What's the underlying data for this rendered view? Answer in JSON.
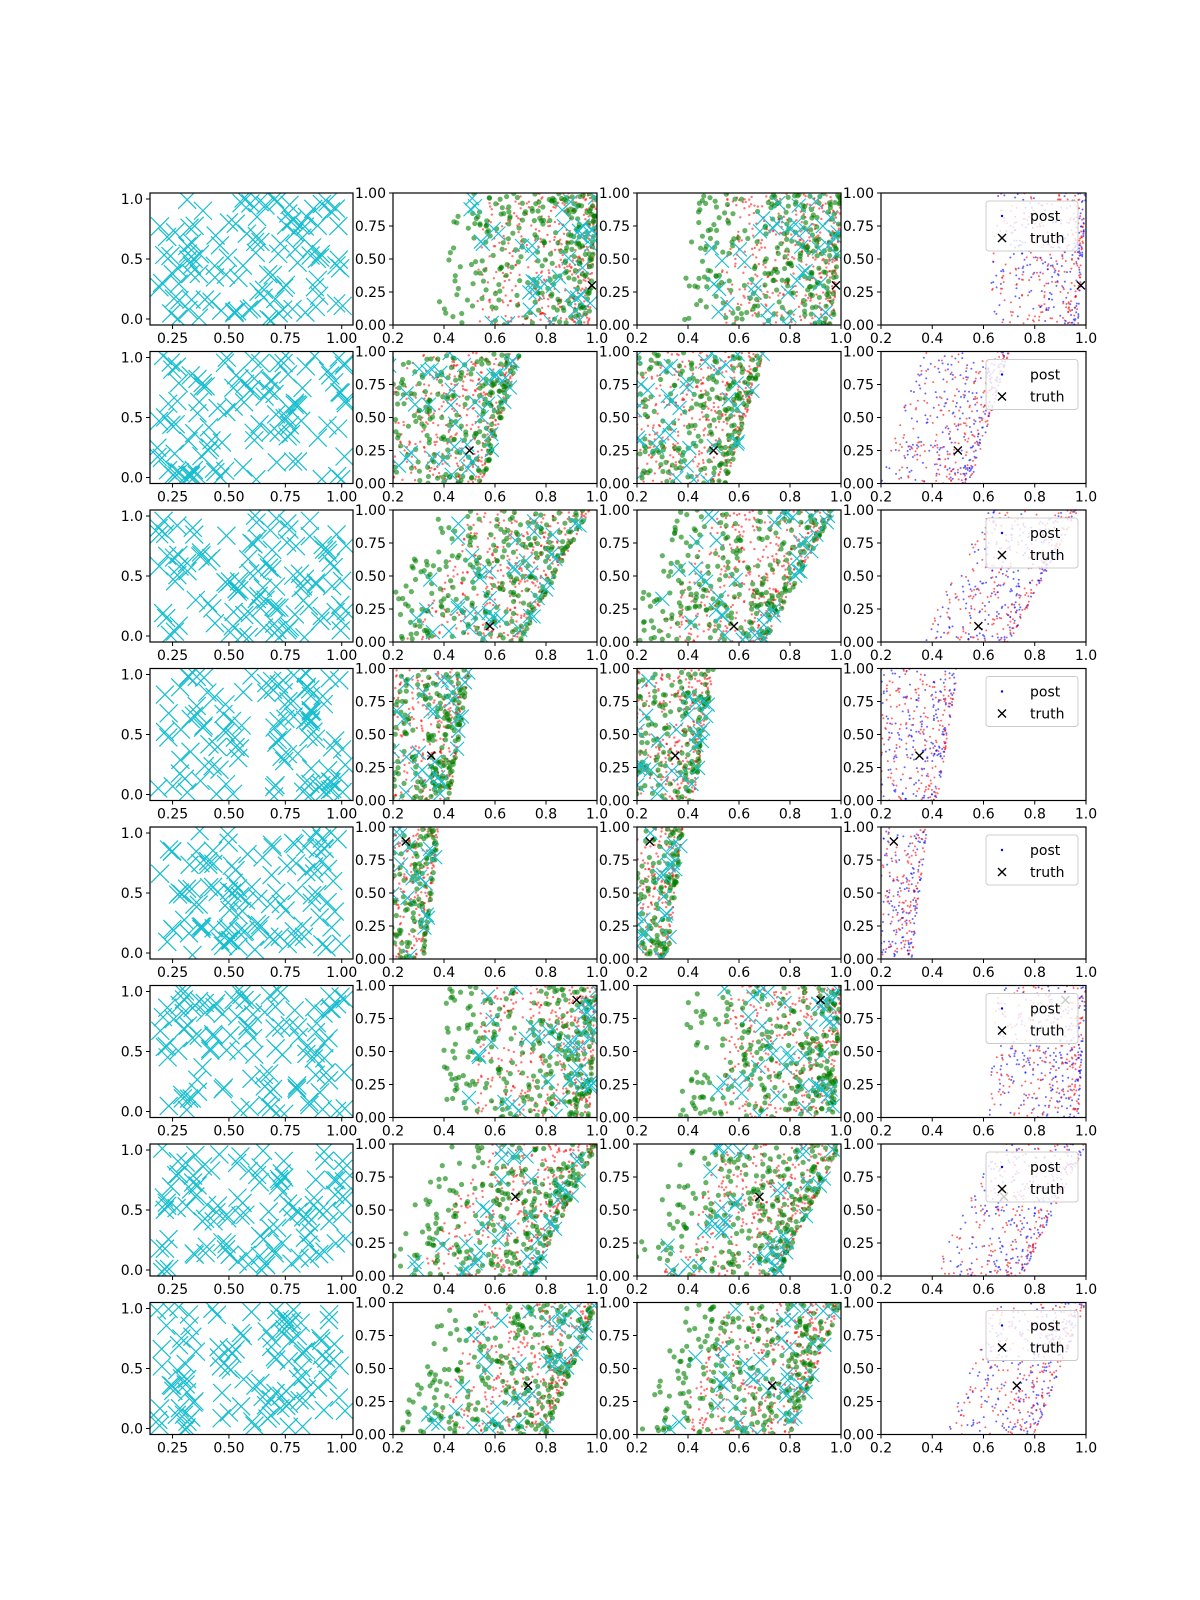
{
  "figure": {
    "colors": {
      "design": "#17becf",
      "post": "#0000ff",
      "post_alt": "#ff0000",
      "prior": "#008000",
      "truth": "#000000"
    },
    "legend_entries": [
      "post",
      "truth"
    ],
    "design_x_ticks": [
      "0.25",
      "0.50",
      "0.75",
      "1.00"
    ],
    "design_y_ticks": [
      "0.0",
      "0.5",
      "1.0"
    ],
    "post_x_ticks": [
      "0.2",
      "0.4",
      "0.6",
      "0.8",
      "1.0"
    ],
    "post_y_ticks": [
      "0.00",
      "0.25",
      "0.50",
      "0.75",
      "1.00"
    ]
  },
  "chart_data": {
    "type": "scatter",
    "layout": "8 rows x 4 columns",
    "columns": [
      {
        "kind": "design",
        "marker": "x",
        "color": "#17becf",
        "xlim": [
          0.15,
          1.05
        ],
        "ylim": [
          -0.05,
          1.05
        ]
      },
      {
        "kind": "samples",
        "markers": [
          "red dots",
          "green dots",
          "cyan x"
        ],
        "xlim": [
          0.2,
          1.0
        ],
        "ylim": [
          0.0,
          1.0
        ]
      },
      {
        "kind": "samples",
        "markers": [
          "red dots",
          "green dots",
          "cyan x"
        ],
        "xlim": [
          0.2,
          1.0
        ],
        "ylim": [
          0.0,
          1.0
        ]
      },
      {
        "kind": "posterior",
        "legend": [
          "post",
          "truth"
        ],
        "legend_position": "upper right",
        "xlim": [
          0.2,
          1.0
        ],
        "ylim": [
          0.0,
          1.0
        ]
      }
    ],
    "rows": [
      {
        "truth": [
          0.98,
          0.3
        ],
        "band": "uniform",
        "edge": [
          0.97,
          1.0
        ]
      },
      {
        "truth": [
          0.5,
          0.25
        ],
        "band": "slanted",
        "edge": [
          0.55,
          0.7
        ]
      },
      {
        "truth": [
          0.58,
          0.12
        ],
        "band": "slanted",
        "edge": [
          0.7,
          0.97
        ]
      },
      {
        "truth": [
          0.35,
          0.34
        ],
        "band": "slanted",
        "edge": [
          0.42,
          0.5
        ]
      },
      {
        "truth": [
          0.25,
          0.89
        ],
        "band": "slanted",
        "edge": [
          0.32,
          0.38
        ]
      },
      {
        "truth": [
          0.92,
          0.89
        ],
        "band": "uniform",
        "edge": [
          0.97,
          1.0
        ]
      },
      {
        "truth": [
          0.68,
          0.6
        ],
        "band": "slanted",
        "edge": [
          0.75,
          1.0
        ]
      },
      {
        "truth": [
          0.73,
          0.37
        ],
        "band": "slanted",
        "edge": [
          0.8,
          1.0
        ]
      }
    ]
  }
}
